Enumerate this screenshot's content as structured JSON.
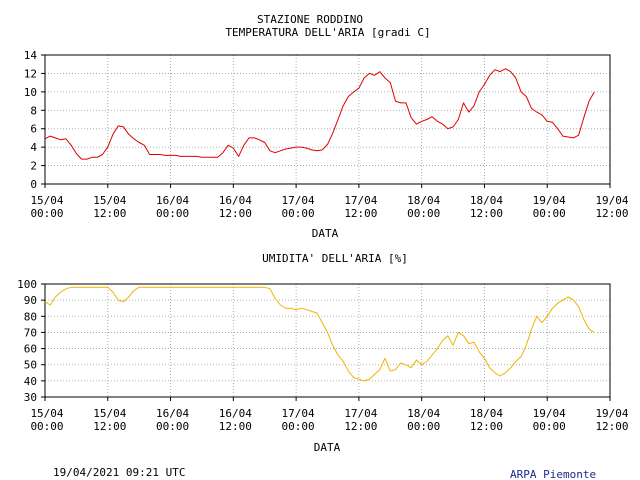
{
  "header": {
    "station": "STAZIONE RODDINO"
  },
  "footer": {
    "timestamp": "19/04/2021 09:21 UTC",
    "credit": "ARPA Piemonte"
  },
  "colors": {
    "temperature_line": "#e00000",
    "humidity_line": "#f0b400",
    "credit_text": "#1c2a8a",
    "grid": "#999999"
  },
  "chart_data": [
    {
      "type": "line",
      "title": "TEMPERATURA DELL'ARIA [gradi C]",
      "xlabel": "DATA",
      "ylabel": "",
      "x_unit": "hours from 15/04 00:00",
      "xlim": [
        0,
        108
      ],
      "ylim": [
        0,
        14
      ],
      "yticks": [
        0,
        2,
        4,
        6,
        8,
        10,
        12,
        14
      ],
      "xticks": [
        {
          "h": 0,
          "date": "15/04",
          "time": "00:00"
        },
        {
          "h": 12,
          "date": "15/04",
          "time": "12:00"
        },
        {
          "h": 24,
          "date": "16/04",
          "time": "00:00"
        },
        {
          "h": 36,
          "date": "16/04",
          "time": "12:00"
        },
        {
          "h": 48,
          "date": "17/04",
          "time": "00:00"
        },
        {
          "h": 60,
          "date": "17/04",
          "time": "12:00"
        },
        {
          "h": 72,
          "date": "18/04",
          "time": "00:00"
        },
        {
          "h": 84,
          "date": "18/04",
          "time": "12:00"
        },
        {
          "h": 96,
          "date": "19/04",
          "time": "00:00"
        },
        {
          "h": 108,
          "date": "19/04",
          "time": "12:00"
        }
      ],
      "grid": true,
      "series": [
        {
          "x": [
            0,
            1,
            2,
            3,
            4,
            5,
            6,
            7,
            8,
            9,
            10,
            11,
            12,
            13,
            14,
            15,
            16,
            17,
            18,
            19,
            20,
            21,
            22,
            23,
            24,
            25,
            26,
            27,
            28,
            29,
            30,
            31,
            32,
            33,
            34,
            35,
            36,
            37,
            38,
            39,
            40,
            41,
            42,
            43,
            44,
            45,
            46,
            47,
            48,
            49,
            50,
            51,
            52,
            53,
            54,
            55,
            56,
            57,
            58,
            59,
            60,
            61,
            62,
            63,
            64,
            65,
            66,
            67,
            68,
            69,
            70,
            71,
            72,
            73,
            74,
            75,
            76,
            77,
            78,
            79,
            80,
            81,
            82,
            83,
            84,
            85,
            86,
            87,
            88,
            89,
            90,
            91,
            92,
            93,
            94,
            95,
            96,
            97,
            98,
            99,
            100,
            101,
            102,
            103,
            104,
            105
          ],
          "y": [
            4.9,
            5.2,
            5.0,
            4.8,
            4.9,
            4.2,
            3.3,
            2.7,
            2.7,
            2.9,
            2.9,
            3.2,
            4.0,
            5.4,
            6.3,
            6.2,
            5.4,
            4.9,
            4.5,
            4.2,
            3.2,
            3.2,
            3.2,
            3.1,
            3.1,
            3.1,
            3.0,
            3.0,
            3.0,
            3.0,
            2.9,
            2.9,
            2.9,
            2.9,
            3.4,
            4.2,
            3.9,
            3.0,
            4.2,
            5.0,
            5.0,
            4.8,
            4.5,
            3.6,
            3.4,
            3.6,
            3.8,
            3.9,
            4.0,
            4.0,
            3.9,
            3.7,
            3.6,
            3.7,
            4.3,
            5.5,
            7.0,
            8.5,
            9.5,
            10.0,
            10.4,
            11.5,
            12.0,
            11.8,
            12.2,
            11.5,
            11.0,
            9.0,
            8.8,
            8.8,
            7.2,
            6.5,
            6.8,
            7.0,
            7.3,
            6.8,
            6.5,
            6.0,
            6.2,
            7.0,
            8.8,
            7.8,
            8.5,
            10.0,
            10.8,
            11.8,
            12.4,
            12.2,
            12.5,
            12.2,
            11.5,
            10.0,
            9.5,
            8.2,
            7.8,
            7.5,
            6.8,
            6.7,
            6.0,
            5.2,
            5.1,
            5.0,
            5.3,
            7.2,
            9.0,
            10.0
          ]
        }
      ]
    },
    {
      "type": "line",
      "title": "UMIDITA' DELL'ARIA [%]",
      "xlabel": "DATA",
      "ylabel": "",
      "x_unit": "hours from 15/04 00:00",
      "xlim": [
        0,
        108
      ],
      "ylim": [
        30,
        100
      ],
      "yticks": [
        30,
        40,
        50,
        60,
        70,
        80,
        90,
        100
      ],
      "xticks": [
        {
          "h": 0,
          "date": "15/04",
          "time": "00:00"
        },
        {
          "h": 12,
          "date": "15/04",
          "time": "12:00"
        },
        {
          "h": 24,
          "date": "16/04",
          "time": "00:00"
        },
        {
          "h": 36,
          "date": "16/04",
          "time": "12:00"
        },
        {
          "h": 48,
          "date": "17/04",
          "time": "00:00"
        },
        {
          "h": 60,
          "date": "17/04",
          "time": "12:00"
        },
        {
          "h": 72,
          "date": "18/04",
          "time": "00:00"
        },
        {
          "h": 84,
          "date": "18/04",
          "time": "12:00"
        },
        {
          "h": 96,
          "date": "19/04",
          "time": "00:00"
        },
        {
          "h": 108,
          "date": "19/04",
          "time": "12:00"
        }
      ],
      "grid": true,
      "series": [
        {
          "x": [
            0,
            1,
            2,
            3,
            4,
            5,
            6,
            7,
            8,
            9,
            10,
            11,
            12,
            13,
            14,
            15,
            16,
            17,
            18,
            19,
            20,
            21,
            22,
            23,
            24,
            25,
            26,
            27,
            28,
            29,
            30,
            31,
            32,
            33,
            34,
            35,
            36,
            37,
            38,
            39,
            40,
            41,
            42,
            43,
            44,
            45,
            46,
            47,
            48,
            49,
            50,
            51,
            52,
            53,
            54,
            55,
            56,
            57,
            58,
            59,
            60,
            61,
            62,
            63,
            64,
            65,
            66,
            67,
            68,
            69,
            70,
            71,
            72,
            73,
            74,
            75,
            76,
            77,
            78,
            79,
            80,
            81,
            82,
            83,
            84,
            85,
            86,
            87,
            88,
            89,
            90,
            91,
            92,
            93,
            94,
            95,
            96,
            97,
            98,
            99,
            100,
            101,
            102,
            103,
            104,
            105
          ],
          "y": [
            89,
            87,
            92,
            95,
            97,
            98,
            98,
            98,
            98,
            98,
            98,
            98,
            98,
            95,
            90,
            89,
            92,
            96,
            98,
            98,
            98,
            98,
            98,
            98,
            98,
            98,
            98,
            98,
            98,
            98,
            98,
            98,
            98,
            98,
            98,
            98,
            98,
            98,
            98,
            98,
            98,
            98,
            98,
            97,
            91,
            87,
            85,
            85,
            84,
            85,
            84,
            83,
            82,
            76,
            70,
            62,
            56,
            52,
            46,
            42,
            41,
            40,
            41,
            44,
            47,
            54,
            46,
            47,
            51,
            50,
            48,
            53,
            50,
            52,
            56,
            60,
            65,
            68,
            62,
            70,
            68,
            63,
            64,
            58,
            54,
            48,
            45,
            43,
            45,
            48,
            52,
            55,
            62,
            72,
            80,
            76,
            80,
            85,
            88,
            90,
            92,
            90,
            86,
            78,
            72,
            70
          ]
        }
      ]
    }
  ]
}
